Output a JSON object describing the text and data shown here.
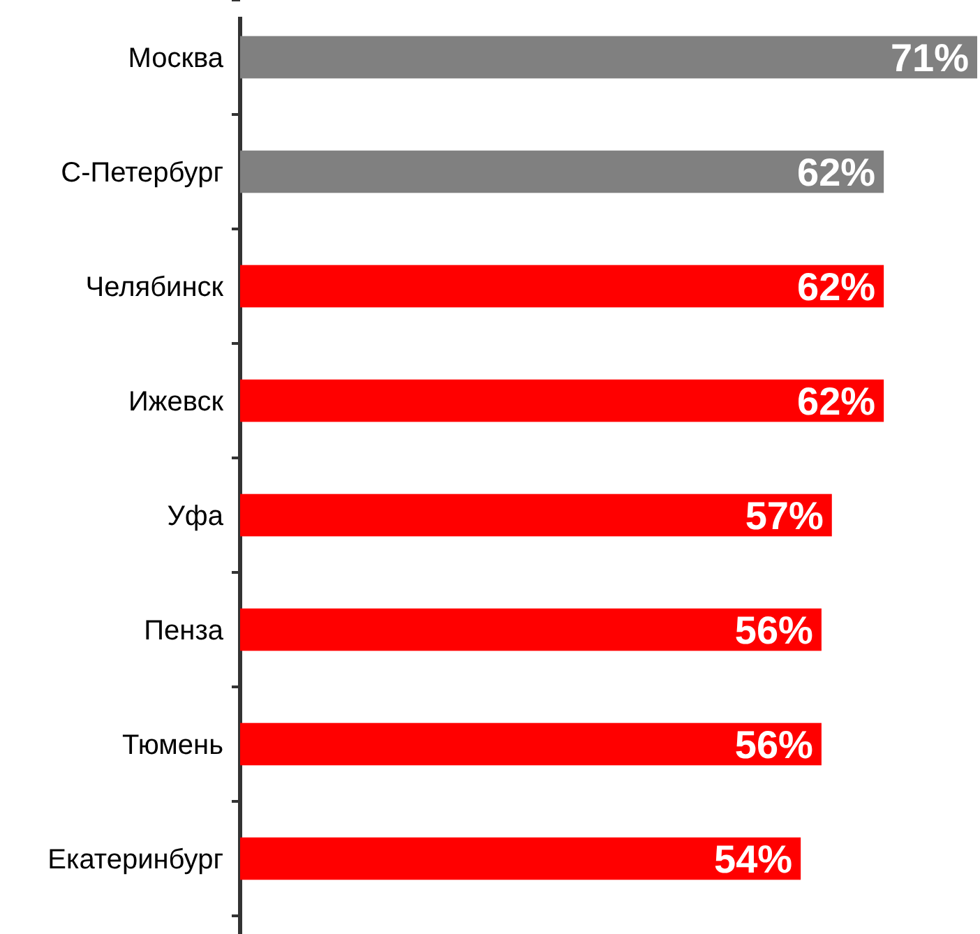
{
  "chart_data": {
    "type": "bar",
    "orientation": "horizontal",
    "categories": [
      "Москва",
      "С-Петербург",
      "Челябинск",
      "Ижевск",
      "Уфа",
      "Пенза",
      "Тюмень",
      "Екатеринбург"
    ],
    "values": [
      71,
      62,
      62,
      62,
      57,
      56,
      56,
      54
    ],
    "colors": [
      "#808080",
      "#808080",
      "#ff0000",
      "#ff0000",
      "#ff0000",
      "#ff0000",
      "#ff0000",
      "#ff0000"
    ],
    "value_labels": [
      "71%",
      "62%",
      "62%",
      "62%",
      "57%",
      "56%",
      "56%",
      "54%"
    ]
  }
}
